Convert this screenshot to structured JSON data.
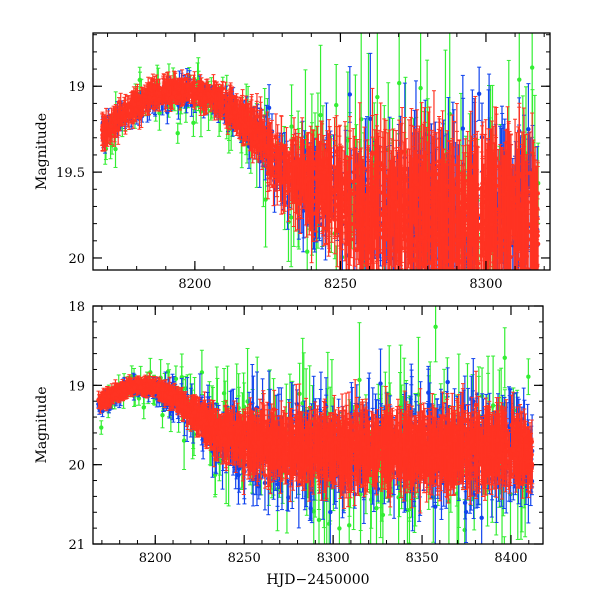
{
  "chart_data": [
    {
      "type": "scatter",
      "panel": "top",
      "xlabel": "",
      "ylabel": "Magnitude",
      "xlim": [
        8165,
        8322
      ],
      "ylim": [
        20.07,
        18.69
      ],
      "y_inverted": true,
      "x_ticks": [
        8200,
        8250,
        8300
      ],
      "y_ticks": [
        19,
        19.5,
        20
      ],
      "y_tick_labels": [
        "19",
        "19.5",
        "20"
      ],
      "x_minor_step": 10,
      "y_minor_step": 0.1,
      "grid": false,
      "error_bars": true,
      "series_colors": {
        "green": "#33ee33",
        "blue": "#1144ee",
        "red": "#ff3322"
      },
      "series": [
        {
          "color_key": "green",
          "x": [
            8170,
            8180,
            8190,
            8200,
            8210,
            8220,
            8230,
            8245,
            8260,
            8275,
            8290,
            8305,
            8318
          ],
          "y": [
            19.3,
            19.12,
            19.05,
            19.05,
            19.12,
            19.3,
            19.5,
            19.65,
            19.7,
            19.72,
            19.72,
            19.73,
            19.75
          ],
          "scatter": [
            0.12,
            0.12,
            0.12,
            0.14,
            0.16,
            0.22,
            0.32,
            0.42,
            0.5,
            0.55,
            0.55,
            0.55,
            0.55
          ],
          "yerr": [
            0.08,
            0.08,
            0.08,
            0.1,
            0.12,
            0.16,
            0.22,
            0.3,
            0.36,
            0.4,
            0.4,
            0.4,
            0.4
          ],
          "count": 200
        },
        {
          "color_key": "blue",
          "x": [
            8170,
            8180,
            8190,
            8200,
            8210,
            8220,
            8230,
            8245,
            8260,
            8275,
            8290,
            8305,
            8318
          ],
          "y": [
            19.25,
            19.12,
            19.05,
            19.05,
            19.12,
            19.28,
            19.5,
            19.65,
            19.72,
            19.75,
            19.75,
            19.75,
            19.75
          ],
          "scatter": [
            0.06,
            0.06,
            0.07,
            0.07,
            0.08,
            0.1,
            0.16,
            0.26,
            0.34,
            0.4,
            0.42,
            0.42,
            0.42
          ],
          "yerr": [
            0.05,
            0.05,
            0.05,
            0.06,
            0.07,
            0.09,
            0.13,
            0.2,
            0.26,
            0.3,
            0.32,
            0.32,
            0.32
          ],
          "count": 420
        },
        {
          "color_key": "red",
          "x": [
            8170,
            8180,
            8190,
            8200,
            8210,
            8220,
            8230,
            8245,
            8260,
            8275,
            8290,
            8305,
            8318
          ],
          "y": [
            19.25,
            19.1,
            19.03,
            19.03,
            19.1,
            19.25,
            19.48,
            19.62,
            19.72,
            19.74,
            19.75,
            19.75,
            19.75
          ],
          "scatter": [
            0.05,
            0.05,
            0.05,
            0.05,
            0.06,
            0.08,
            0.12,
            0.18,
            0.24,
            0.28,
            0.28,
            0.28,
            0.28
          ],
          "yerr": [
            0.06,
            0.05,
            0.05,
            0.05,
            0.06,
            0.08,
            0.12,
            0.18,
            0.24,
            0.28,
            0.28,
            0.28,
            0.28
          ],
          "count": 1500
        }
      ]
    },
    {
      "type": "scatter",
      "panel": "bottom",
      "xlabel": "HJD−2450000",
      "ylabel": "Magnitude",
      "xlim": [
        8165,
        8418
      ],
      "ylim": [
        21,
        18
      ],
      "y_inverted": true,
      "x_ticks": [
        8200,
        8250,
        8300,
        8350,
        8400
      ],
      "y_ticks": [
        18,
        19,
        20,
        21
      ],
      "y_tick_labels": [
        "18",
        "19",
        "20",
        "21"
      ],
      "x_minor_step": 10,
      "y_minor_step": 0.2,
      "grid": false,
      "error_bars": true,
      "series_colors": {
        "green": "#33ee33",
        "blue": "#1144ee",
        "red": "#ff3322"
      },
      "series": [
        {
          "color_key": "green",
          "x": [
            8170,
            8185,
            8200,
            8215,
            8230,
            8250,
            8275,
            8300,
            8325,
            8350,
            8375,
            8400,
            8412
          ],
          "y": [
            19.25,
            19.05,
            19.05,
            19.25,
            19.55,
            19.75,
            19.8,
            19.8,
            19.8,
            19.8,
            19.8,
            19.82,
            19.9
          ],
          "scatter": [
            0.15,
            0.15,
            0.18,
            0.35,
            0.5,
            0.65,
            0.75,
            0.8,
            0.8,
            0.8,
            0.8,
            0.8,
            0.6
          ],
          "yerr": [
            0.1,
            0.1,
            0.12,
            0.25,
            0.35,
            0.45,
            0.5,
            0.55,
            0.55,
            0.55,
            0.55,
            0.55,
            0.45
          ],
          "count": 260
        },
        {
          "color_key": "blue",
          "x": [
            8170,
            8185,
            8200,
            8215,
            8230,
            8250,
            8275,
            8300,
            8325,
            8350,
            8375,
            8400,
            8412
          ],
          "y": [
            19.25,
            19.05,
            19.05,
            19.25,
            19.55,
            19.75,
            19.8,
            19.8,
            19.8,
            19.8,
            19.8,
            19.82,
            19.9
          ],
          "scatter": [
            0.08,
            0.08,
            0.1,
            0.2,
            0.32,
            0.42,
            0.48,
            0.5,
            0.5,
            0.5,
            0.5,
            0.5,
            0.4
          ],
          "yerr": [
            0.07,
            0.07,
            0.08,
            0.16,
            0.25,
            0.32,
            0.36,
            0.38,
            0.38,
            0.38,
            0.38,
            0.38,
            0.32
          ],
          "count": 560
        },
        {
          "color_key": "red",
          "x": [
            8170,
            8185,
            8200,
            8215,
            8230,
            8250,
            8275,
            8300,
            8325,
            8350,
            8375,
            8400,
            8412
          ],
          "y": [
            19.2,
            19.02,
            19.02,
            19.22,
            19.52,
            19.72,
            19.78,
            19.8,
            19.8,
            19.8,
            19.8,
            19.82,
            19.9
          ],
          "scatter": [
            0.06,
            0.06,
            0.06,
            0.1,
            0.16,
            0.22,
            0.26,
            0.28,
            0.28,
            0.28,
            0.28,
            0.28,
            0.25
          ],
          "yerr": [
            0.07,
            0.06,
            0.06,
            0.1,
            0.16,
            0.22,
            0.26,
            0.28,
            0.28,
            0.28,
            0.28,
            0.28,
            0.25
          ],
          "count": 2000
        }
      ]
    }
  ]
}
